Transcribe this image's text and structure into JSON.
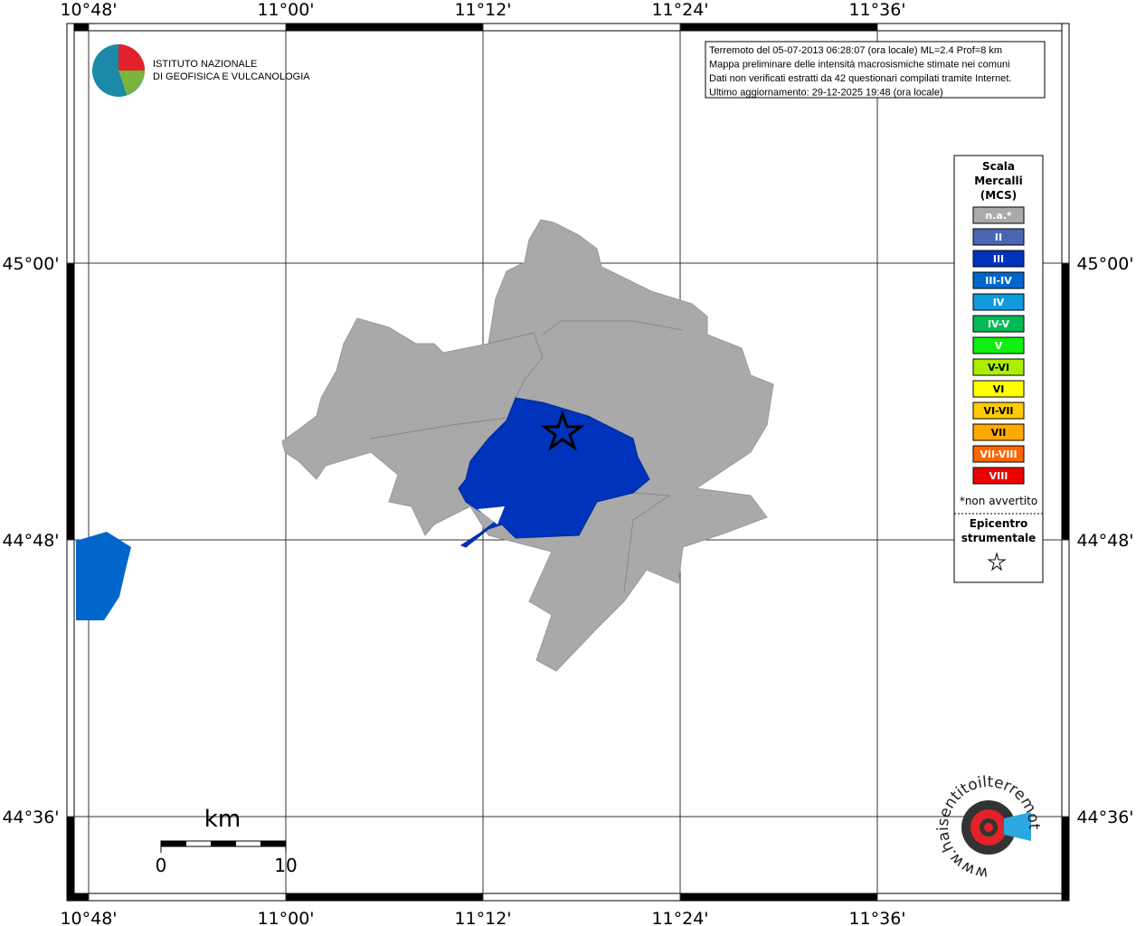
{
  "header": {
    "logo_lines": [
      "ISTITUTO NAZIONALE",
      "DI GEOFISICA E VULCANOLOGIA"
    ]
  },
  "info": [
    "Terremoto del 05-07-2013 06:28:07 (ora locale) ML=2.4 Prof=8 km",
    "Mappa preliminare delle intensità macrosismiche stimate nei comuni",
    "Dati non verificati estratti da 42 questionari compilati tramite Internet.",
    "Ultimo aggiornamento: 29-12-2025 19:48 (ora locale)"
  ],
  "axes": {
    "longitudes": [
      "10°48'",
      "11°00'",
      "11°12'",
      "11°24'",
      "11°36'"
    ],
    "latitudes": [
      "45°00'",
      "44°48'",
      "44°36'"
    ]
  },
  "legend": {
    "title": [
      "Scala",
      "Mercalli",
      "(MCS)"
    ],
    "items": [
      {
        "label": "n.a.*",
        "color": "#aaaaaa"
      },
      {
        "label": "II",
        "color": "#4a66b3"
      },
      {
        "label": "III",
        "color": "#0033bb"
      },
      {
        "label": "III-IV",
        "color": "#0066cc"
      },
      {
        "label": "IV",
        "color": "#1199dd"
      },
      {
        "label": "IV-V",
        "color": "#00bb55"
      },
      {
        "label": "V",
        "color": "#11ee11"
      },
      {
        "label": "V-VI",
        "color": "#aaee00"
      },
      {
        "label": "VI",
        "color": "#ffff00"
      },
      {
        "label": "VI-VII",
        "color": "#ffcc00"
      },
      {
        "label": "VII",
        "color": "#ffaa00"
      },
      {
        "label": "VII-VIII",
        "color": "#ff6600"
      },
      {
        "label": "VIII",
        "color": "#ee0000"
      }
    ],
    "note": "*non avvertito",
    "epicenter": [
      "Epicentro",
      "strumentale"
    ]
  },
  "scale": {
    "unit": "km",
    "ticks": [
      "0",
      "10"
    ]
  },
  "logo": {
    "text": "www.haisentitoilterremoto.it"
  }
}
